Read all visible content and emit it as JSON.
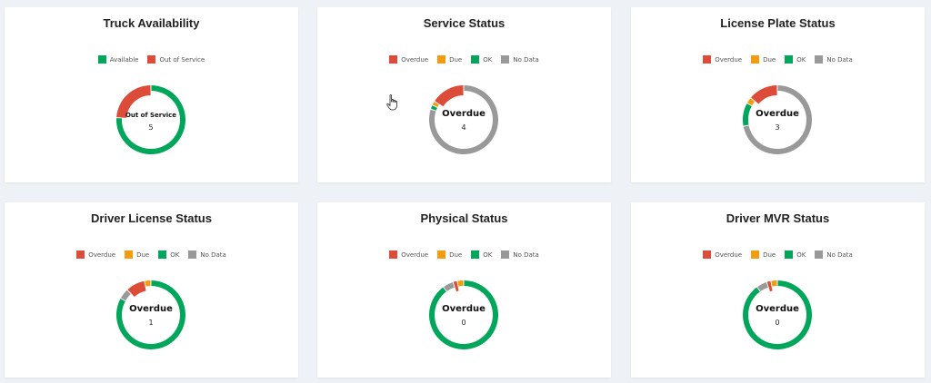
{
  "colors": {
    "overdue": "#dd4b39",
    "due": "#f39c12",
    "ok": "#00a65a",
    "no_data": "#999999",
    "available": "#00a65a",
    "out_of_service": "#dd4b39"
  },
  "cards": [
    {
      "title": "Truck Availability",
      "legend": [
        {
          "label": "Available",
          "color": "#00a65a"
        },
        {
          "label": "Out of Service",
          "color": "#dd4b39"
        }
      ],
      "center_label": "Out of Service",
      "center_value": "5",
      "segments": [
        {
          "color": "#00a65a",
          "value": 76
        },
        {
          "color": "#dd4b39",
          "value": 24
        }
      ]
    },
    {
      "title": "Service Status",
      "legend": [
        {
          "label": "Overdue",
          "color": "#dd4b39"
        },
        {
          "label": "Due",
          "color": "#f39c12"
        },
        {
          "label": "OK",
          "color": "#00a65a"
        },
        {
          "label": "No Data",
          "color": "#999999"
        }
      ],
      "center_label": "Overdue",
      "center_value": "4",
      "segments": [
        {
          "color": "#999999",
          "value": 80
        },
        {
          "color": "#00a65a",
          "value": 2
        },
        {
          "color": "#f39c12",
          "value": 2
        },
        {
          "color": "#dd4b39",
          "value": 16
        }
      ]
    },
    {
      "title": "License Plate Status",
      "legend": [
        {
          "label": "Overdue",
          "color": "#dd4b39"
        },
        {
          "label": "Due",
          "color": "#f39c12"
        },
        {
          "label": "OK",
          "color": "#00a65a"
        },
        {
          "label": "No Data",
          "color": "#999999"
        }
      ],
      "center_label": "Overdue",
      "center_value": "3",
      "segments": [
        {
          "color": "#999999",
          "value": 72
        },
        {
          "color": "#00a65a",
          "value": 11
        },
        {
          "color": "#f39c12",
          "value": 3
        },
        {
          "color": "#dd4b39",
          "value": 14
        }
      ]
    },
    {
      "title": "Driver License Status",
      "legend": [
        {
          "label": "Overdue",
          "color": "#dd4b39"
        },
        {
          "label": "Due",
          "color": "#f39c12"
        },
        {
          "label": "OK",
          "color": "#00a65a"
        },
        {
          "label": "No Data",
          "color": "#999999"
        }
      ],
      "center_label": "Overdue",
      "center_value": "1",
      "segments": [
        {
          "color": "#00a65a",
          "value": 83
        },
        {
          "color": "#999999",
          "value": 5
        },
        {
          "color": "#dd4b39",
          "value": 9
        },
        {
          "color": "#f39c12",
          "value": 3
        }
      ]
    },
    {
      "title": "Physical Status",
      "legend": [
        {
          "label": "Overdue",
          "color": "#dd4b39"
        },
        {
          "label": "Due",
          "color": "#f39c12"
        },
        {
          "label": "OK",
          "color": "#00a65a"
        },
        {
          "label": "No Data",
          "color": "#999999"
        }
      ],
      "center_label": "Overdue",
      "center_value": "0",
      "segments": [
        {
          "color": "#00a65a",
          "value": 90
        },
        {
          "color": "#999999",
          "value": 5
        },
        {
          "color": "#dd4b39",
          "value": 2
        },
        {
          "color": "#f39c12",
          "value": 3
        }
      ]
    },
    {
      "title": "Driver MVR Status",
      "legend": [
        {
          "label": "Overdue",
          "color": "#dd4b39"
        },
        {
          "label": "Due",
          "color": "#f39c12"
        },
        {
          "label": "OK",
          "color": "#00a65a"
        },
        {
          "label": "No Data",
          "color": "#999999"
        }
      ],
      "center_label": "Overdue",
      "center_value": "0",
      "segments": [
        {
          "color": "#00a65a",
          "value": 90
        },
        {
          "color": "#999999",
          "value": 5
        },
        {
          "color": "#dd4b39",
          "value": 2
        },
        {
          "color": "#f39c12",
          "value": 3
        }
      ]
    }
  ],
  "cursor": {
    "icon": "hand-pointer-icon"
  }
}
